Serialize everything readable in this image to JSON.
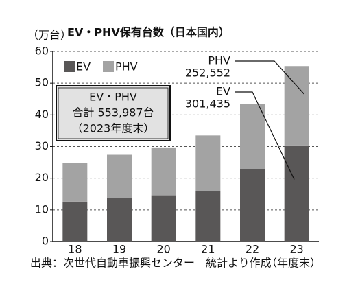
{
  "chart_data": {
    "type": "stacked-bar",
    "title": "EV・PHV保有台数（日本国内）",
    "y_unit": "（万台）",
    "x_unit": "（年度末）",
    "categories": [
      "18",
      "19",
      "20",
      "21",
      "22",
      "23"
    ],
    "series": [
      {
        "name": "EV",
        "color": "#595757",
        "values": [
          12.6,
          13.8,
          14.6,
          16.0,
          22.8,
          30.1435
        ],
        "value_labels": [
          null,
          null,
          null,
          null,
          null,
          "301,435"
        ]
      },
      {
        "name": "PHV",
        "color": "#a3a3a3",
        "values": [
          12.2,
          13.6,
          15.1,
          17.5,
          20.7,
          25.2552
        ],
        "value_labels": [
          null,
          null,
          null,
          null,
          null,
          "252,552"
        ]
      }
    ],
    "ylim": [
      0,
      60
    ],
    "yticks": [
      0,
      10,
      20,
      30,
      40,
      50,
      60
    ],
    "grid": true,
    "summary_box": [
      "EV・PHV",
      "合計 553,987台",
      "（2023年度末）"
    ],
    "source": "出典：次世代自動車振興センター　統計より作成"
  }
}
